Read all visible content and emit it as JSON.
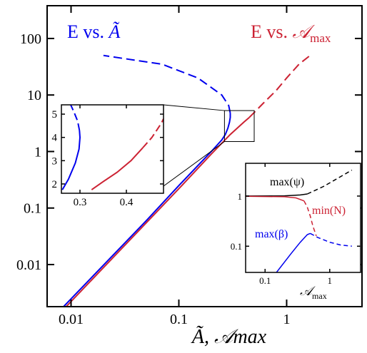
{
  "chart_data": {
    "type": "line",
    "x_scale": "log",
    "y_scale": "log",
    "xlim": [
      0.006,
      5
    ],
    "ylim": [
      0.0018,
      380
    ],
    "xticks": [
      0.01,
      0.1,
      1
    ],
    "xtick_labels": [
      "0.01",
      "0.1",
      "1"
    ],
    "yticks": [
      0.01,
      0.1,
      1,
      10,
      100
    ],
    "ytick_labels": [
      "0.01",
      "0.1",
      "1",
      "10",
      "100"
    ],
    "xlabel": "Ã,  𝒜max",
    "ylabel": "",
    "grid": false,
    "colors": {
      "blue": "#0000ee",
      "red": "#cc2233",
      "black": "#000000"
    },
    "series": [
      {
        "name": "E vs. Ã",
        "color": "#0000ee",
        "solid": [
          [
            0.006,
            0.0009
          ],
          [
            0.05,
            0.06
          ],
          [
            0.1,
            0.25
          ],
          [
            0.2,
            1.0
          ],
          [
            0.25,
            1.6
          ],
          [
            0.27,
            2.0
          ],
          [
            0.285,
            2.6
          ],
          [
            0.295,
            3.3
          ],
          [
            0.3,
            4.0
          ],
          [
            0.3,
            4.8
          ]
        ],
        "dashed": [
          [
            0.3,
            4.8
          ],
          [
            0.29,
            6.5
          ],
          [
            0.25,
            10
          ],
          [
            0.15,
            20
          ],
          [
            0.07,
            35
          ],
          [
            0.02,
            50
          ]
        ]
      },
      {
        "name": "E vs. 𝒜max",
        "color": "#cc2233",
        "solid": [
          [
            0.006,
            0.0008
          ],
          [
            0.05,
            0.055
          ],
          [
            0.1,
            0.22
          ],
          [
            0.2,
            0.9
          ],
          [
            0.3,
            2.0
          ],
          [
            0.4,
            3.3
          ],
          [
            0.45,
            4.0
          ]
        ],
        "dashed": [
          [
            0.45,
            4.0
          ],
          [
            0.6,
            7
          ],
          [
            0.8,
            12
          ],
          [
            1.0,
            20
          ],
          [
            1.3,
            35
          ],
          [
            1.65,
            50
          ]
        ]
      }
    ],
    "annotations": {
      "blue_label": {
        "main": "E vs. ",
        "sym": "Ã"
      },
      "red_label": {
        "main": "E vs. ",
        "sym": "𝒜",
        "sub": "max"
      }
    },
    "inset_zoom": {
      "xlim": [
        0.26,
        0.48
      ],
      "ylim": [
        1.6,
        5.4
      ],
      "xticks": [
        0.3,
        0.4
      ],
      "xtick_labels": [
        "0.3",
        "0.4"
      ],
      "yticks": [
        2,
        3,
        4,
        5
      ],
      "ytick_labels": [
        "2",
        "3",
        "4",
        "5"
      ],
      "zoom_box": {
        "x": [
          0.265,
          0.5
        ],
        "y": [
          1.5,
          5.3
        ]
      },
      "series": [
        {
          "color": "#0000ee",
          "solid": [
            [
              0.262,
              1.75
            ],
            [
              0.275,
              2.2
            ],
            [
              0.29,
              2.9
            ],
            [
              0.298,
              3.5
            ],
            [
              0.3,
              4.0
            ],
            [
              0.299,
              4.3
            ]
          ],
          "dashed": [
            [
              0.299,
              4.3
            ],
            [
              0.295,
              4.7
            ],
            [
              0.287,
              5.1
            ],
            [
              0.28,
              5.4
            ]
          ]
        },
        {
          "color": "#cc2233",
          "solid": [
            [
              0.325,
              1.75
            ],
            [
              0.35,
              2.1
            ],
            [
              0.38,
              2.5
            ],
            [
              0.41,
              3.0
            ],
            [
              0.435,
              3.55
            ]
          ],
          "dashed": [
            [
              0.435,
              3.55
            ],
            [
              0.455,
              4.0
            ],
            [
              0.475,
              4.6
            ],
            [
              0.48,
              4.8
            ]
          ]
        }
      ]
    },
    "inset_norms": {
      "xlim": [
        0.05,
        3
      ],
      "ylim": [
        0.03,
        4.5
      ],
      "xticks": [
        0.1,
        1
      ],
      "xtick_labels": [
        "0.1",
        "1"
      ],
      "yticks": [
        0.1,
        1
      ],
      "ytick_labels": [
        "0.1",
        "1"
      ],
      "xlabel_main": "𝒜",
      "xlabel_sub": "max",
      "series": [
        {
          "name": "max(ψ)",
          "color": "#000000",
          "solid": [
            [
              0.05,
              1.0
            ],
            [
              0.2,
              1.01
            ],
            [
              0.35,
              1.05
            ],
            [
              0.45,
              1.1
            ]
          ],
          "dashed": [
            [
              0.45,
              1.1
            ],
            [
              0.8,
              1.55
            ],
            [
              1.2,
              2.1
            ],
            [
              2.2,
              3.3
            ]
          ]
        },
        {
          "name": "min(N)",
          "color": "#cc2233",
          "solid": [
            [
              0.05,
              0.99
            ],
            [
              0.2,
              0.97
            ],
            [
              0.3,
              0.92
            ],
            [
              0.4,
              0.8
            ]
          ],
          "dashed": [
            [
              0.4,
              0.8
            ],
            [
              0.45,
              0.6
            ],
            [
              0.5,
              0.4
            ],
            [
              0.55,
              0.25
            ],
            [
              0.62,
              0.16
            ]
          ]
        },
        {
          "name": "max(β)",
          "color": "#0000ee",
          "solid": [
            [
              0.15,
              0.03
            ],
            [
              0.25,
              0.07
            ],
            [
              0.35,
              0.12
            ],
            [
              0.45,
              0.17
            ],
            [
              0.5,
              0.18
            ]
          ],
          "dashed": [
            [
              0.5,
              0.18
            ],
            [
              0.65,
              0.15
            ],
            [
              1.0,
              0.12
            ],
            [
              1.5,
              0.105
            ],
            [
              2.2,
              0.1
            ]
          ]
        }
      ]
    }
  }
}
